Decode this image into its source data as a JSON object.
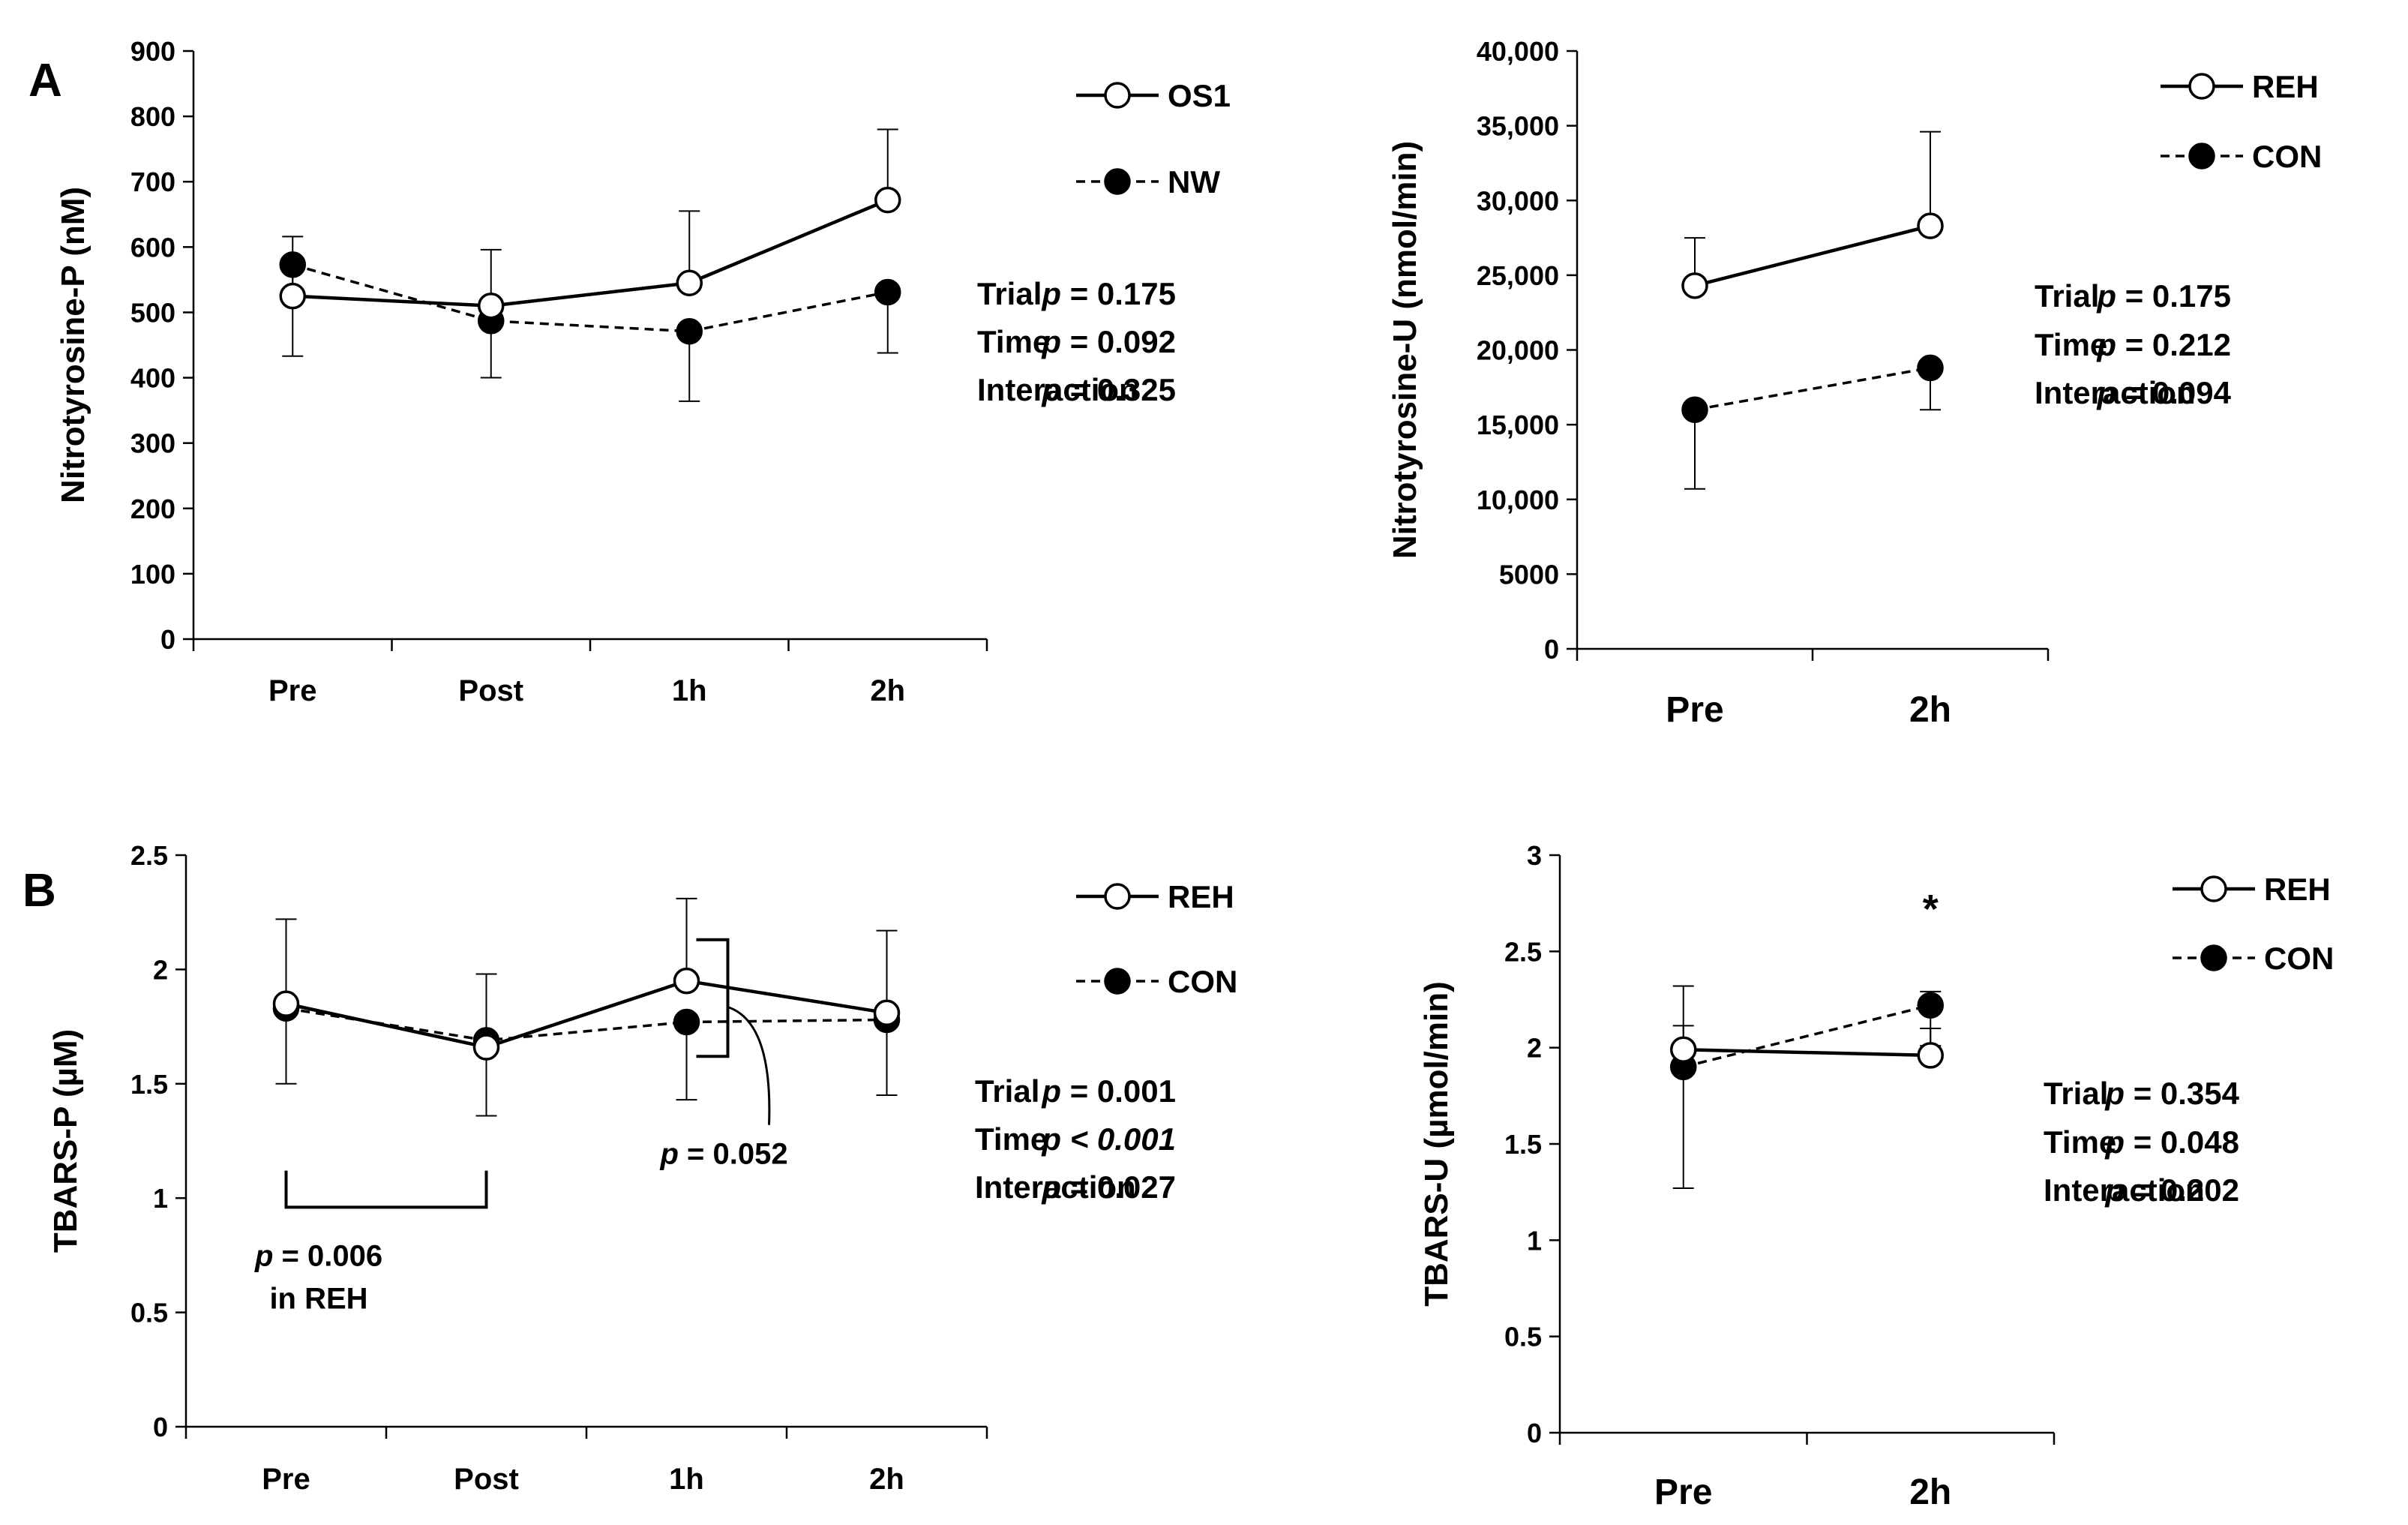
{
  "panel_labels": [
    "A",
    "B"
  ],
  "chart_data": [
    {
      "id": "a-left",
      "type": "line",
      "ylabel": "Nitrotyrosine-P (nM)",
      "categories": [
        "Pre",
        "Post",
        "1h",
        "2h"
      ],
      "ylim": [
        0,
        900
      ],
      "yticks": [
        0,
        100,
        200,
        300,
        400,
        500,
        600,
        700,
        800,
        900
      ],
      "ytick_labels": [
        "0",
        "100",
        "200",
        "300",
        "400",
        "500",
        "600",
        "700",
        "800",
        "900"
      ],
      "series": [
        {
          "name": "OS1",
          "marker": "open",
          "dashed": false,
          "values": [
            525,
            510,
            545,
            672
          ],
          "errors": [
            91,
            86,
            110,
            108
          ],
          "error_dir": "up"
        },
        {
          "name": "NW",
          "marker": "filled",
          "dashed": true,
          "values": [
            573,
            487,
            471,
            531
          ],
          "errors": [
            140,
            87,
            107,
            93
          ],
          "error_dir": "down"
        }
      ],
      "legend": [
        {
          "label": "OS1",
          "marker": "open",
          "dashed": false
        },
        {
          "label": "NW",
          "marker": "filled",
          "dashed": true
        }
      ],
      "stats": [
        {
          "label": "Trial",
          "p": "p",
          "op": "=",
          "value": "0.175",
          "italic_value": false
        },
        {
          "label": "Time",
          "p": "p",
          "op": "=",
          "value": "0.092",
          "italic_value": false
        },
        {
          "label": "Interaction",
          "p": "p",
          "op": "=",
          "value": "0.325",
          "italic_value": false
        }
      ],
      "annotations": []
    },
    {
      "id": "a-right",
      "type": "line",
      "ylabel": "Nitrotyrosine-U (nmol/min)",
      "categories": [
        "Pre",
        "2h"
      ],
      "ylim": [
        0,
        40000
      ],
      "yticks": [
        0,
        5000,
        10000,
        15000,
        20000,
        25000,
        30000,
        35000,
        40000
      ],
      "ytick_labels": [
        "0",
        "5000",
        "10,000",
        "15,000",
        "20,000",
        "25,000",
        "30,000",
        "35,000",
        "40,000"
      ],
      "series": [
        {
          "name": "REH",
          "marker": "open",
          "dashed": false,
          "values": [
            24300,
            28300
          ],
          "errors": [
            3200,
            6300
          ],
          "error_dir": "up"
        },
        {
          "name": "CON",
          "marker": "filled",
          "dashed": true,
          "values": [
            16000,
            18800
          ],
          "errors": [
            5300,
            2800
          ],
          "error_dir": "down"
        }
      ],
      "legend": [
        {
          "label": "REH",
          "marker": "open",
          "dashed": false
        },
        {
          "label": "CON",
          "marker": "filled",
          "dashed": true
        }
      ],
      "stats": [
        {
          "label": "Trial",
          "p": "p",
          "op": "=",
          "value": "0.175",
          "italic_value": false
        },
        {
          "label": "Time",
          "p": "p",
          "op": "=",
          "value": "0.212",
          "italic_value": false
        },
        {
          "label": "Interaction",
          "p": "p",
          "op": "=",
          "value": "0.094",
          "italic_value": false
        }
      ],
      "annotations": []
    },
    {
      "id": "b-left",
      "type": "line",
      "ylabel": "TBARS-P (µM)",
      "categories": [
        "Pre",
        "Post",
        "1h",
        "2h"
      ],
      "ylim": [
        0,
        2.5
      ],
      "yticks": [
        0,
        0.5,
        1,
        1.5,
        2,
        2.5
      ],
      "ytick_labels": [
        "0",
        "0.5",
        "1",
        "1.5",
        "2",
        "2.5"
      ],
      "series": [
        {
          "name": "REH",
          "marker": "open",
          "dashed": false,
          "values": [
            1.85,
            1.66,
            1.95,
            1.81
          ],
          "errors": [
            0.37,
            0.32,
            0.36,
            0.36
          ],
          "error_dir": "up"
        },
        {
          "name": "CON",
          "marker": "filled",
          "dashed": true,
          "values": [
            1.83,
            1.69,
            1.77,
            1.78
          ],
          "errors": [
            0.33,
            0.33,
            0.34,
            0.33
          ],
          "error_dir": "down"
        }
      ],
      "legend": [
        {
          "label": "REH",
          "marker": "open",
          "dashed": false
        },
        {
          "label": "CON",
          "marker": "filled",
          "dashed": true
        }
      ],
      "stats": [
        {
          "label": "Trial",
          "p": "p",
          "op": "=",
          "value": "0.001",
          "italic_value": false
        },
        {
          "label": "Time",
          "p": "p",
          "op": "<",
          "value": "0.001",
          "italic_value": true
        },
        {
          "label": "Interaction",
          "p": "p",
          "op": "=",
          "value": "0.027",
          "italic_value": false
        }
      ],
      "annotations": [
        {
          "kind": "bracket-bottom",
          "from": "Pre",
          "to": "Post",
          "p": "p",
          "text": "= 0.006",
          "subtext": "in REH"
        },
        {
          "kind": "bracket-side",
          "at": "1h",
          "p": "p",
          "text": "= 0.052"
        }
      ]
    },
    {
      "id": "b-right",
      "type": "line",
      "ylabel": "TBARS-U (µmol/min)",
      "categories": [
        "Pre",
        "2h"
      ],
      "ylim": [
        0,
        3
      ],
      "yticks": [
        0,
        0.5,
        1,
        1.5,
        2,
        2.5,
        3
      ],
      "ytick_labels": [
        "0",
        "0.5",
        "1",
        "1.5",
        "2",
        "2.5",
        "3"
      ],
      "series": [
        {
          "name": "REH",
          "marker": "open",
          "dashed": false,
          "values": [
            1.99,
            1.96
          ],
          "errors": [
            0.33,
            0.14
          ],
          "error_dir": "up"
        },
        {
          "name": "CON",
          "marker": "filled",
          "dashed": true,
          "values": [
            1.9,
            2.22
          ],
          "errors": [
            0.63,
            0.21
          ],
          "error_dir": "mixed"
        }
      ],
      "legend": [
        {
          "label": "REH",
          "marker": "open",
          "dashed": false
        },
        {
          "label": "CON",
          "marker": "filled",
          "dashed": true
        }
      ],
      "stats": [
        {
          "label": "Trial",
          "p": "p",
          "op": "=",
          "value": "0.354",
          "italic_value": false
        },
        {
          "label": "Time",
          "p": "p",
          "op": "=",
          "value": "0.048",
          "italic_value": false
        },
        {
          "label": "Interaction",
          "p": "p",
          "op": "=",
          "value": "0.202",
          "italic_value": false
        }
      ],
      "annotations": [
        {
          "kind": "star",
          "at": "2h",
          "text": "*"
        }
      ]
    }
  ]
}
